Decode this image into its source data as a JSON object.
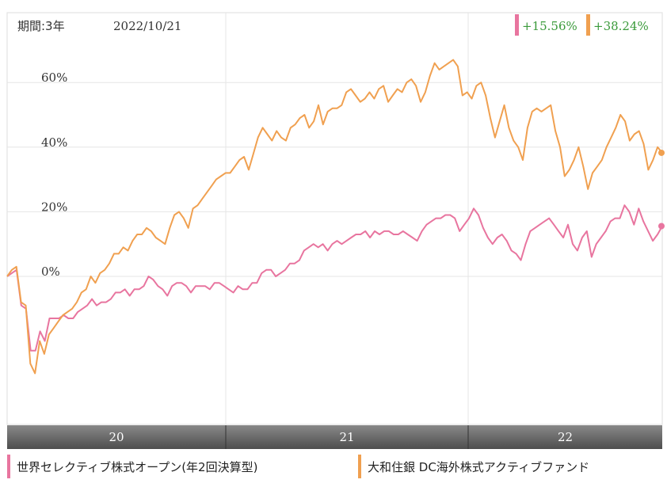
{
  "header": {
    "period_label": "期間:3年",
    "date_label": "2022/10/21",
    "returns": [
      {
        "text": "+15.56%",
        "color": "#e8759f"
      },
      {
        "text": "+38.24%",
        "color": "#f0a050"
      }
    ]
  },
  "legend": [
    {
      "label": "世界セレクティブ株式オープン(年2回決算型)",
      "color": "#e8759f"
    },
    {
      "label": "大和住銀 DC海外株式アクティブファンド",
      "color": "#f0a050"
    }
  ],
  "chart_data": {
    "type": "line",
    "title": "",
    "xlabel": "",
    "ylabel": "",
    "x_ticks": [
      "20",
      "21",
      "22"
    ],
    "y_ticks": [
      "60%",
      "40%",
      "20%",
      "0%"
    ],
    "ylim": [
      -45,
      82
    ],
    "grid": true,
    "series": [
      {
        "name": "世界セレクティブ株式オープン(年2回決算型)",
        "color": "#e8759f",
        "last": 15.56,
        "values": [
          0,
          1,
          2,
          -9,
          -10,
          -23,
          -23,
          -17,
          -20,
          -13,
          -13,
          -13,
          -12,
          -13,
          -13,
          -11,
          -10,
          -9,
          -7,
          -9,
          -8,
          -8,
          -7,
          -5,
          -5,
          -4,
          -6,
          -4,
          -4,
          -3,
          0,
          -1,
          -3,
          -4,
          -6,
          -3,
          -2,
          -2,
          -3,
          -5,
          -3,
          -3,
          -3,
          -4,
          -2,
          -2,
          -3,
          -4,
          -5,
          -3,
          -4,
          -4,
          -2,
          -2,
          1,
          2,
          2,
          0,
          1,
          2,
          4,
          4,
          5,
          8,
          9,
          10,
          9,
          10,
          8,
          10,
          11,
          10,
          11,
          12,
          13,
          13,
          14,
          12,
          14,
          13,
          14,
          14,
          13,
          13,
          14,
          13,
          12,
          11,
          14,
          16,
          17,
          18,
          18,
          19,
          19,
          18,
          14,
          16,
          18,
          21,
          19,
          15,
          12,
          10,
          12,
          13,
          11,
          8,
          7,
          5,
          10,
          14,
          15,
          16,
          17,
          18,
          16,
          14,
          12,
          16,
          10,
          8,
          12,
          14,
          6,
          10,
          12,
          14,
          17,
          18,
          18,
          22,
          20,
          16,
          21,
          17,
          14,
          11,
          13,
          15.56
        ]
      },
      {
        "name": "大和住銀 DC海外株式アクティブファンド",
        "color": "#f0a050",
        "last": 38.24,
        "values": [
          0,
          2,
          3,
          -8,
          -9,
          -27,
          -30,
          -20,
          -24,
          -18,
          -16,
          -14,
          -12,
          -11,
          -10,
          -8,
          -5,
          -4,
          0,
          -2,
          1,
          2,
          4,
          7,
          7,
          9,
          8,
          11,
          13,
          13,
          15,
          14,
          12,
          11,
          10,
          15,
          19,
          20,
          18,
          15,
          21,
          22,
          24,
          26,
          28,
          30,
          31,
          32,
          32,
          34,
          36,
          37,
          33,
          38,
          43,
          46,
          44,
          42,
          45,
          43,
          42,
          46,
          47,
          49,
          50,
          46,
          48,
          53,
          47,
          51,
          52,
          52,
          53,
          57,
          58,
          56,
          54,
          55,
          57,
          55,
          58,
          59,
          54,
          56,
          58,
          57,
          60,
          61,
          59,
          54,
          57,
          62,
          66,
          64,
          65,
          66,
          67,
          65,
          56,
          57,
          55,
          59,
          60,
          56,
          49,
          43,
          48,
          53,
          46,
          42,
          40,
          36,
          46,
          51,
          52,
          51,
          52,
          53,
          45,
          40,
          31,
          33,
          36,
          40,
          34,
          27,
          32,
          34,
          36,
          40,
          43,
          46,
          50,
          48,
          42,
          44,
          45,
          41,
          33,
          36,
          40,
          38.24
        ]
      }
    ]
  }
}
